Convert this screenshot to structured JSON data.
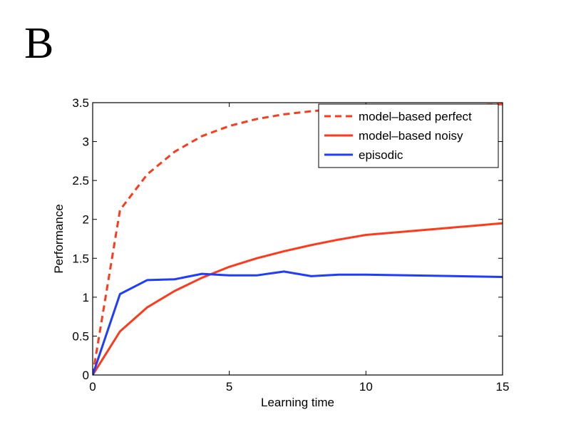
{
  "panel_label": "B",
  "chart_data": {
    "type": "line",
    "xlabel": "Learning time",
    "ylabel": "Performance",
    "xlim": [
      0,
      15
    ],
    "ylim": [
      0,
      3.5
    ],
    "xticks": [
      0,
      5,
      10,
      15
    ],
    "xtick_labels": [
      "0",
      "5",
      "10",
      "15"
    ],
    "yticks": [
      0,
      0.5,
      1,
      1.5,
      2,
      2.5,
      3,
      3.5
    ],
    "ytick_labels": [
      "0",
      "0.5",
      "1",
      "1.5",
      "2",
      "2.5",
      "3",
      "3.5"
    ],
    "grid": false,
    "legend_position": "top-right",
    "series": [
      {
        "name": "model–based perfect",
        "color": "#ff3a1a",
        "dash": "dashed",
        "x": [
          0,
          1,
          2,
          3,
          4,
          5,
          6,
          7,
          8,
          9,
          10,
          11,
          12,
          13,
          14,
          15
        ],
        "y": [
          0,
          2.12,
          2.58,
          2.87,
          3.07,
          3.2,
          3.29,
          3.35,
          3.39,
          3.42,
          3.44,
          3.45,
          3.46,
          3.47,
          3.47,
          3.48
        ]
      },
      {
        "name": "model–based noisy",
        "color": "#ff3a1a",
        "dash": "solid",
        "x": [
          0,
          1,
          2,
          3,
          4,
          5,
          6,
          7,
          8,
          9,
          10,
          11,
          12,
          13,
          14,
          15
        ],
        "y": [
          0,
          0.56,
          0.87,
          1.08,
          1.25,
          1.39,
          1.5,
          1.59,
          1.67,
          1.74,
          1.8,
          1.83,
          1.86,
          1.89,
          1.92,
          1.95
        ]
      },
      {
        "name": "episodic",
        "color": "#1f3cff",
        "dash": "solid",
        "x": [
          0,
          1,
          2,
          3,
          4,
          5,
          6,
          7,
          8,
          9,
          10,
          15
        ],
        "y": [
          0,
          1.04,
          1.22,
          1.23,
          1.3,
          1.28,
          1.28,
          1.33,
          1.27,
          1.29,
          1.29,
          1.26
        ]
      }
    ]
  }
}
